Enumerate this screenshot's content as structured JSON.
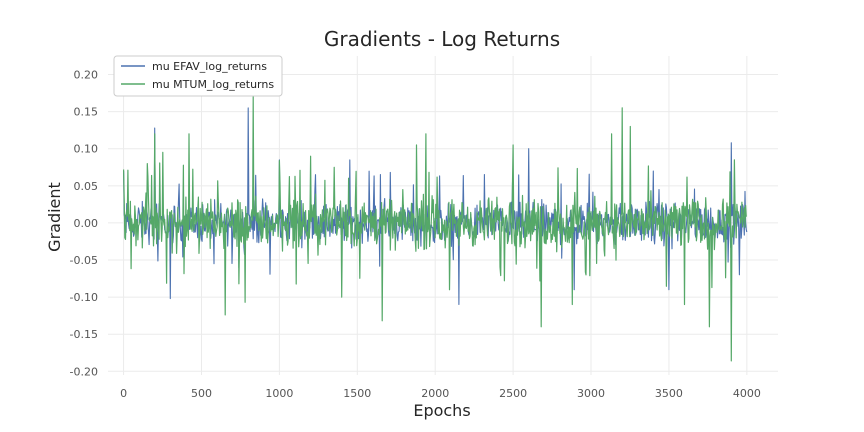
{
  "chart_data": {
    "type": "line",
    "title": "Gradients - Log Returns",
    "xlabel": "Epochs",
    "ylabel": "Gradient",
    "xlim": [
      -100,
      4200
    ],
    "ylim": [
      -0.205,
      0.225
    ],
    "xticks": [
      0,
      500,
      1000,
      1500,
      2000,
      2500,
      3000,
      3500,
      4000
    ],
    "yticks": [
      -0.2,
      -0.15,
      -0.1,
      -0.05,
      0.0,
      0.05,
      0.1,
      0.15,
      0.2
    ],
    "grid": true,
    "legend_position": "top-left",
    "x_range": [
      0,
      4000
    ],
    "series": [
      {
        "name": "mu EFAV_log_returns",
        "color": "#4c72b0",
        "typical_abs_value": 0.02,
        "values": [
          [
            0,
            0.07
          ],
          [
            200,
            0.128
          ],
          [
            300,
            -0.102
          ],
          [
            800,
            0.155
          ],
          [
            1000,
            0.085
          ],
          [
            1450,
            0.085
          ],
          [
            2150,
            -0.11
          ],
          [
            2600,
            0.1
          ],
          [
            2890,
            -0.09
          ],
          [
            3400,
            0.07
          ],
          [
            3500,
            -0.09
          ],
          [
            3900,
            0.108
          ],
          [
            3950,
            -0.07
          ]
        ]
      },
      {
        "name": "mu MTUM_log_returns",
        "color": "#55a868",
        "typical_abs_value": 0.025,
        "values": [
          [
            0,
            0.072
          ],
          [
            150,
            0.08
          ],
          [
            200,
            0.12
          ],
          [
            250,
            0.095
          ],
          [
            420,
            0.12
          ],
          [
            650,
            -0.124
          ],
          [
            780,
            -0.107
          ],
          [
            830,
            0.17
          ],
          [
            1200,
            0.09
          ],
          [
            1400,
            -0.1
          ],
          [
            1660,
            -0.132
          ],
          [
            1880,
            0.105
          ],
          [
            1940,
            0.12
          ],
          [
            2090,
            -0.09
          ],
          [
            2500,
            0.105
          ],
          [
            2680,
            -0.14
          ],
          [
            2880,
            -0.11
          ],
          [
            3130,
            0.12
          ],
          [
            3200,
            0.155
          ],
          [
            3250,
            0.13
          ],
          [
            3600,
            -0.11
          ],
          [
            3760,
            -0.14
          ],
          [
            3900,
            -0.186
          ],
          [
            3920,
            0.085
          ]
        ]
      }
    ]
  }
}
